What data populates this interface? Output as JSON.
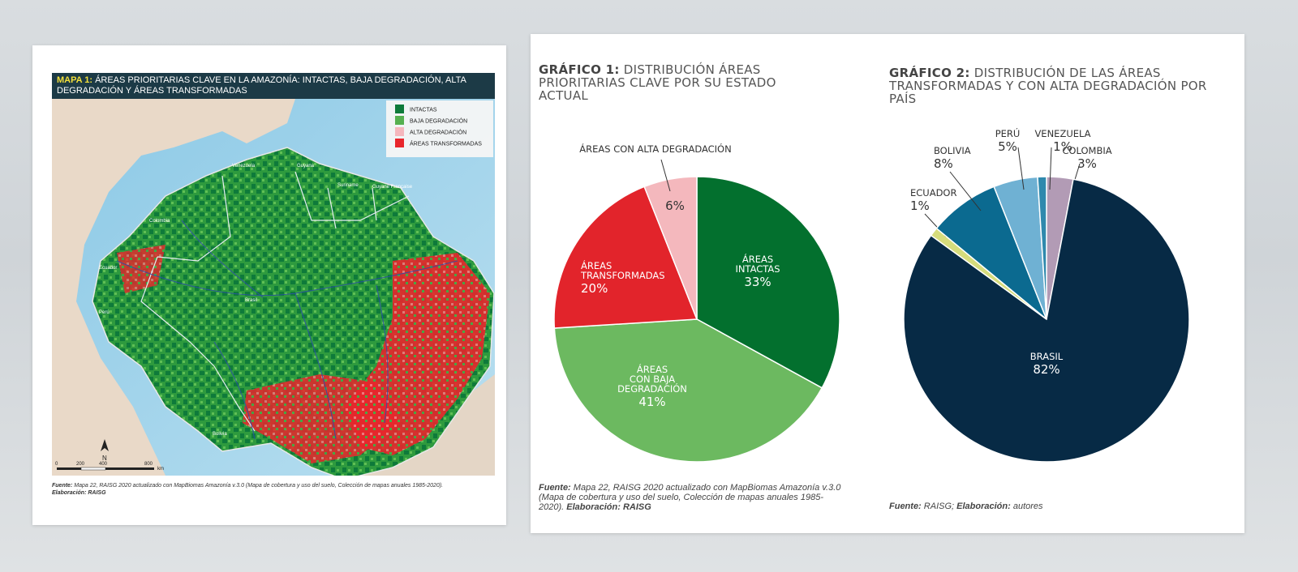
{
  "map": {
    "title_label": "MAPA 1:",
    "title_text": "ÁREAS PRIORITARIAS CLAVE EN LA AMAZONÍA: INTACTAS, BAJA DEGRADACIÓN, ALTA DEGRADACIÓN Y ÁREAS TRANSFORMADAS",
    "legend": [
      {
        "label": "INTACTAS",
        "color": "#0e7a3a"
      },
      {
        "label": "BAJA DEGRADACIÓN",
        "color": "#55b050"
      },
      {
        "label": "ALTA DEGRADACIÓN",
        "color": "#f5b7bd"
      },
      {
        "label": "ÁREAS TRANSFORMADAS",
        "color": "#e8262c"
      }
    ],
    "country_labels": [
      "Venezuela",
      "Guyana",
      "Suriname",
      "Guyane Française",
      "Colombia",
      "Ecuador",
      "Perú",
      "Brasil",
      "Bolivia"
    ],
    "north": "N",
    "scale": [
      "0",
      "200",
      "400",
      "800"
    ],
    "scale_unit": "km",
    "source_label": "Fuente:",
    "source_text": "Mapa 22, RAISG 2020 actualizado con MapBiomas Amazonía v.3.0 (Mapa de cobertura y uso del suelo, Colección de mapas anuales 1985-2020).",
    "credit_label": "Elaboración: RAISG"
  },
  "chart_data": [
    {
      "type": "pie",
      "title_label": "GRÁFICO 1:",
      "title": "DISTRIBUCIÓN ÁREAS PRIORITARIAS CLAVE POR SU ESTADO ACTUAL",
      "slices": [
        {
          "label": "ÁREAS INTACTAS",
          "value": 33,
          "pct": "33%",
          "color": "#03702e"
        },
        {
          "label": "ÁREAS CON BAJA DEGRADACIÓN",
          "value": 41,
          "pct": "41%",
          "color": "#6cb960"
        },
        {
          "label": "ÁREAS TRANSFORMADAS",
          "value": 20,
          "pct": "20%",
          "color": "#e2242b"
        },
        {
          "label": "ÁREAS CON ALTA DEGRADACIÓN",
          "value": 6,
          "pct": "6%",
          "color": "#f4b8bd"
        }
      ],
      "source_label": "Fuente:",
      "source_text": "Mapa 22, RAISG 2020 actualizado con MapBiomas Amazonía v.3.0 (Mapa de cobertura y uso del suelo, Colección de mapas anuales 1985-2020).",
      "credit_label": "Elaboración: RAISG"
    },
    {
      "type": "pie",
      "title_label": "GRÁFICO 2:",
      "title": "DISTRIBUCIÓN DE LAS ÁREAS TRANSFORMADAS Y CON ALTA DEGRADACIÓN POR PAÍS",
      "slices": [
        {
          "label": "COLOMBIA",
          "value": 3,
          "pct": "3%",
          "color": "#b29bb5"
        },
        {
          "label": "BRASIL",
          "value": 82,
          "pct": "82%",
          "color": "#072a45"
        },
        {
          "label": "ECUADOR",
          "value": 1,
          "pct": "1%",
          "color": "#d6dc7c"
        },
        {
          "label": "BOLIVIA",
          "value": 8,
          "pct": "8%",
          "color": "#0b6a90"
        },
        {
          "label": "PERÚ",
          "value": 5,
          "pct": "5%",
          "color": "#6fb1d3"
        },
        {
          "label": "VENEZUELA",
          "value": 1,
          "pct": "1%",
          "color": "#2f89ad"
        }
      ],
      "source_label": "Fuente:",
      "source_text": "RAISG;",
      "credit_label": "Elaboración:",
      "credit_text": "autores"
    }
  ]
}
